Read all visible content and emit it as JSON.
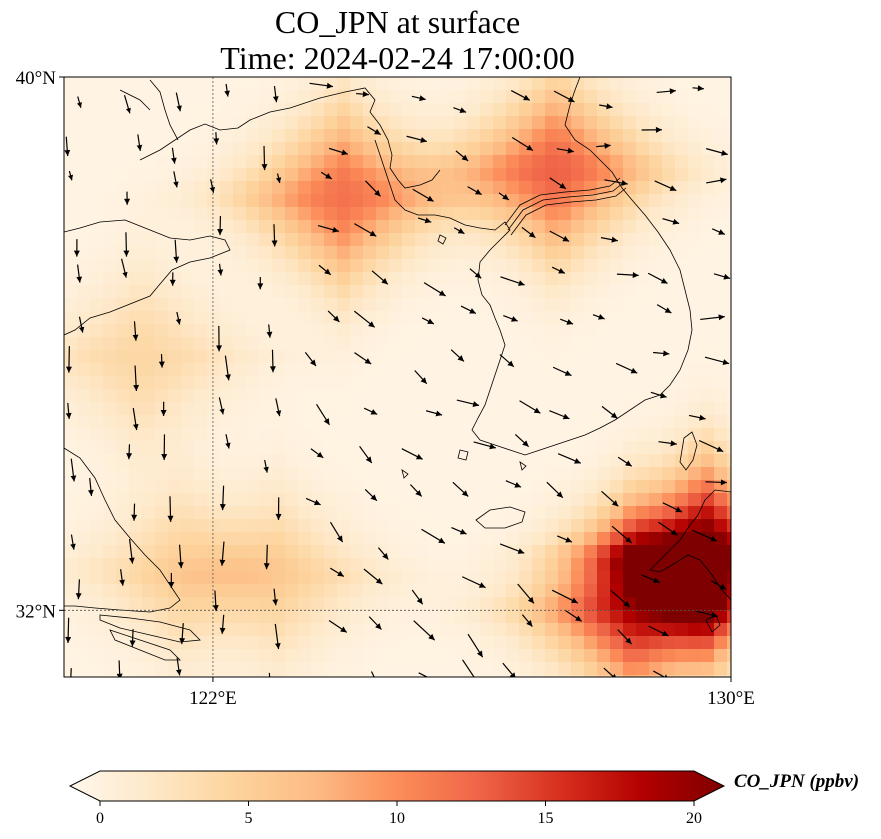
{
  "title": {
    "line1": "CO_JPN at surface",
    "line2": "Time: 2024-02-24 17:00:00"
  },
  "map": {
    "lon_range": [
      119.7,
      130.0
    ],
    "lat_range": [
      31.0,
      40.0
    ],
    "lat_ticks": [
      {
        "value": 40,
        "label": "40°N"
      },
      {
        "value": 32,
        "label": "32°N"
      }
    ],
    "lon_ticks": [
      {
        "value": 122,
        "label": "122°E"
      },
      {
        "value": 130,
        "label": "130°E"
      }
    ],
    "gridlines": [
      {
        "type": "lon",
        "value": 122
      },
      {
        "type": "lat",
        "value": 32
      }
    ],
    "field_name": "CO_JPN",
    "units": "ppbv",
    "colormap": "OrRd",
    "plumes": [
      {
        "lon": 124.0,
        "lat": 38.2,
        "value": 11
      },
      {
        "lon": 127.3,
        "lat": 38.6,
        "value": 12
      },
      {
        "lon": 129.6,
        "lat": 32.8,
        "value": 20
      },
      {
        "lon": 128.5,
        "lat": 32.0,
        "value": 14
      },
      {
        "lon": 120.9,
        "lat": 35.8,
        "value": 4
      },
      {
        "lon": 121.5,
        "lat": 32.6,
        "value": 4
      },
      {
        "lon": 123.0,
        "lat": 32.5,
        "value": 4
      }
    ]
  },
  "colorbar": {
    "vmin": 0,
    "vmax": 20,
    "extend": "both",
    "ticks": [
      {
        "value": 0,
        "label": "0"
      },
      {
        "value": 5,
        "label": "5"
      },
      {
        "value": 10,
        "label": "10"
      },
      {
        "value": 15,
        "label": "15"
      },
      {
        "value": 20,
        "label": "20"
      }
    ],
    "label": "CO_JPN (ppbv)",
    "stops": [
      "#fff7ec",
      "#fee8c8",
      "#fdd49e",
      "#fdbb84",
      "#fc8d59",
      "#ef6548",
      "#d7301f",
      "#b30000",
      "#7f0000"
    ]
  }
}
